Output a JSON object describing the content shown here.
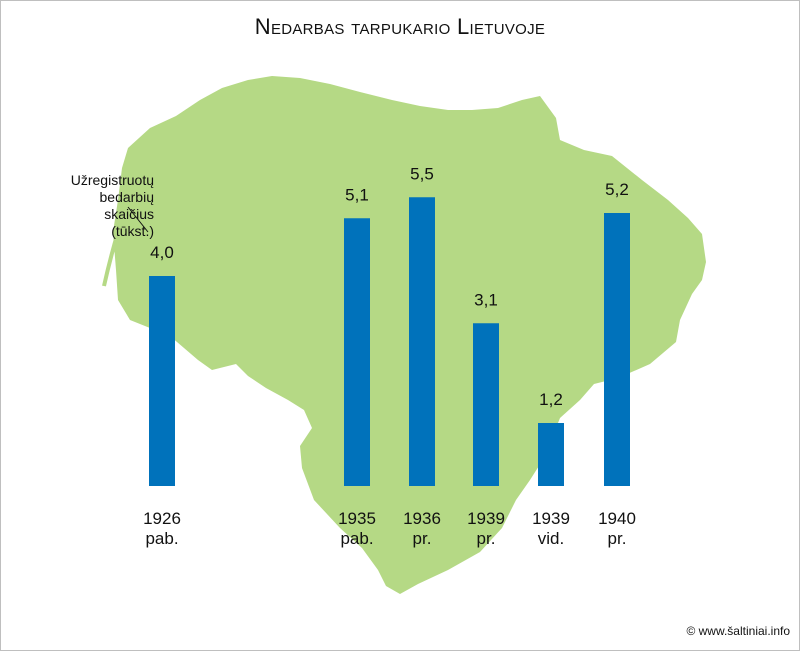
{
  "title": "Nedarbas tarpukario Lietuvoje",
  "ylabel": "Užregistruotų\nbedarbių\nskaičius\n(tūkst.)",
  "credit": "© www.šaltiniai.info",
  "colors": {
    "bar": "#0072bb",
    "map": "#b5d985",
    "background": "#ffffff"
  },
  "chart_data": {
    "type": "bar",
    "title": "Nedarbas tarpukario Lietuvoje",
    "ylabel": "Užregistruotų bedarbių skaičius (tūkst.)",
    "categories": [
      [
        "1926",
        "pab."
      ],
      [
        "1935",
        "pab."
      ],
      [
        "1936",
        "pr."
      ],
      [
        "1939",
        "pr."
      ],
      [
        "1939",
        "vid."
      ],
      [
        "1940",
        "pr."
      ]
    ],
    "values": [
      4.0,
      5.1,
      5.5,
      3.1,
      1.2,
      5.2
    ],
    "value_labels": [
      "4,0",
      "5,1",
      "5,5",
      "3,1",
      "1,2",
      "5,2"
    ],
    "background_shape": "map of Lithuania",
    "grid": false,
    "legend": "none"
  }
}
